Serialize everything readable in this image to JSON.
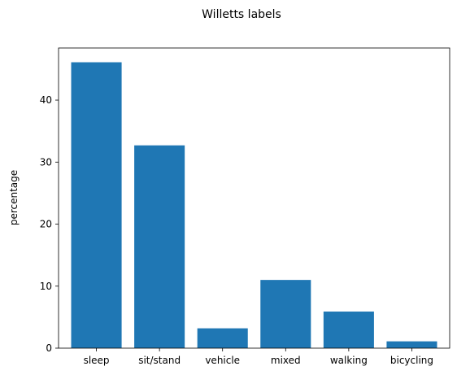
{
  "chart_data": {
    "type": "bar",
    "title": "Willetts labels",
    "xlabel": "",
    "ylabel": "percentage",
    "categories": [
      "sleep",
      "sit/stand",
      "vehicle",
      "mixed",
      "walking",
      "bicycling"
    ],
    "values": [
      46.1,
      32.7,
      3.2,
      11.0,
      5.9,
      1.1
    ],
    "ylim": [
      0,
      48.4
    ],
    "yticks": [
      0,
      10,
      20,
      30,
      40
    ],
    "grid": false,
    "colors": {
      "bar": "#1f77b4",
      "axis": "#000000",
      "background": "#ffffff"
    }
  }
}
